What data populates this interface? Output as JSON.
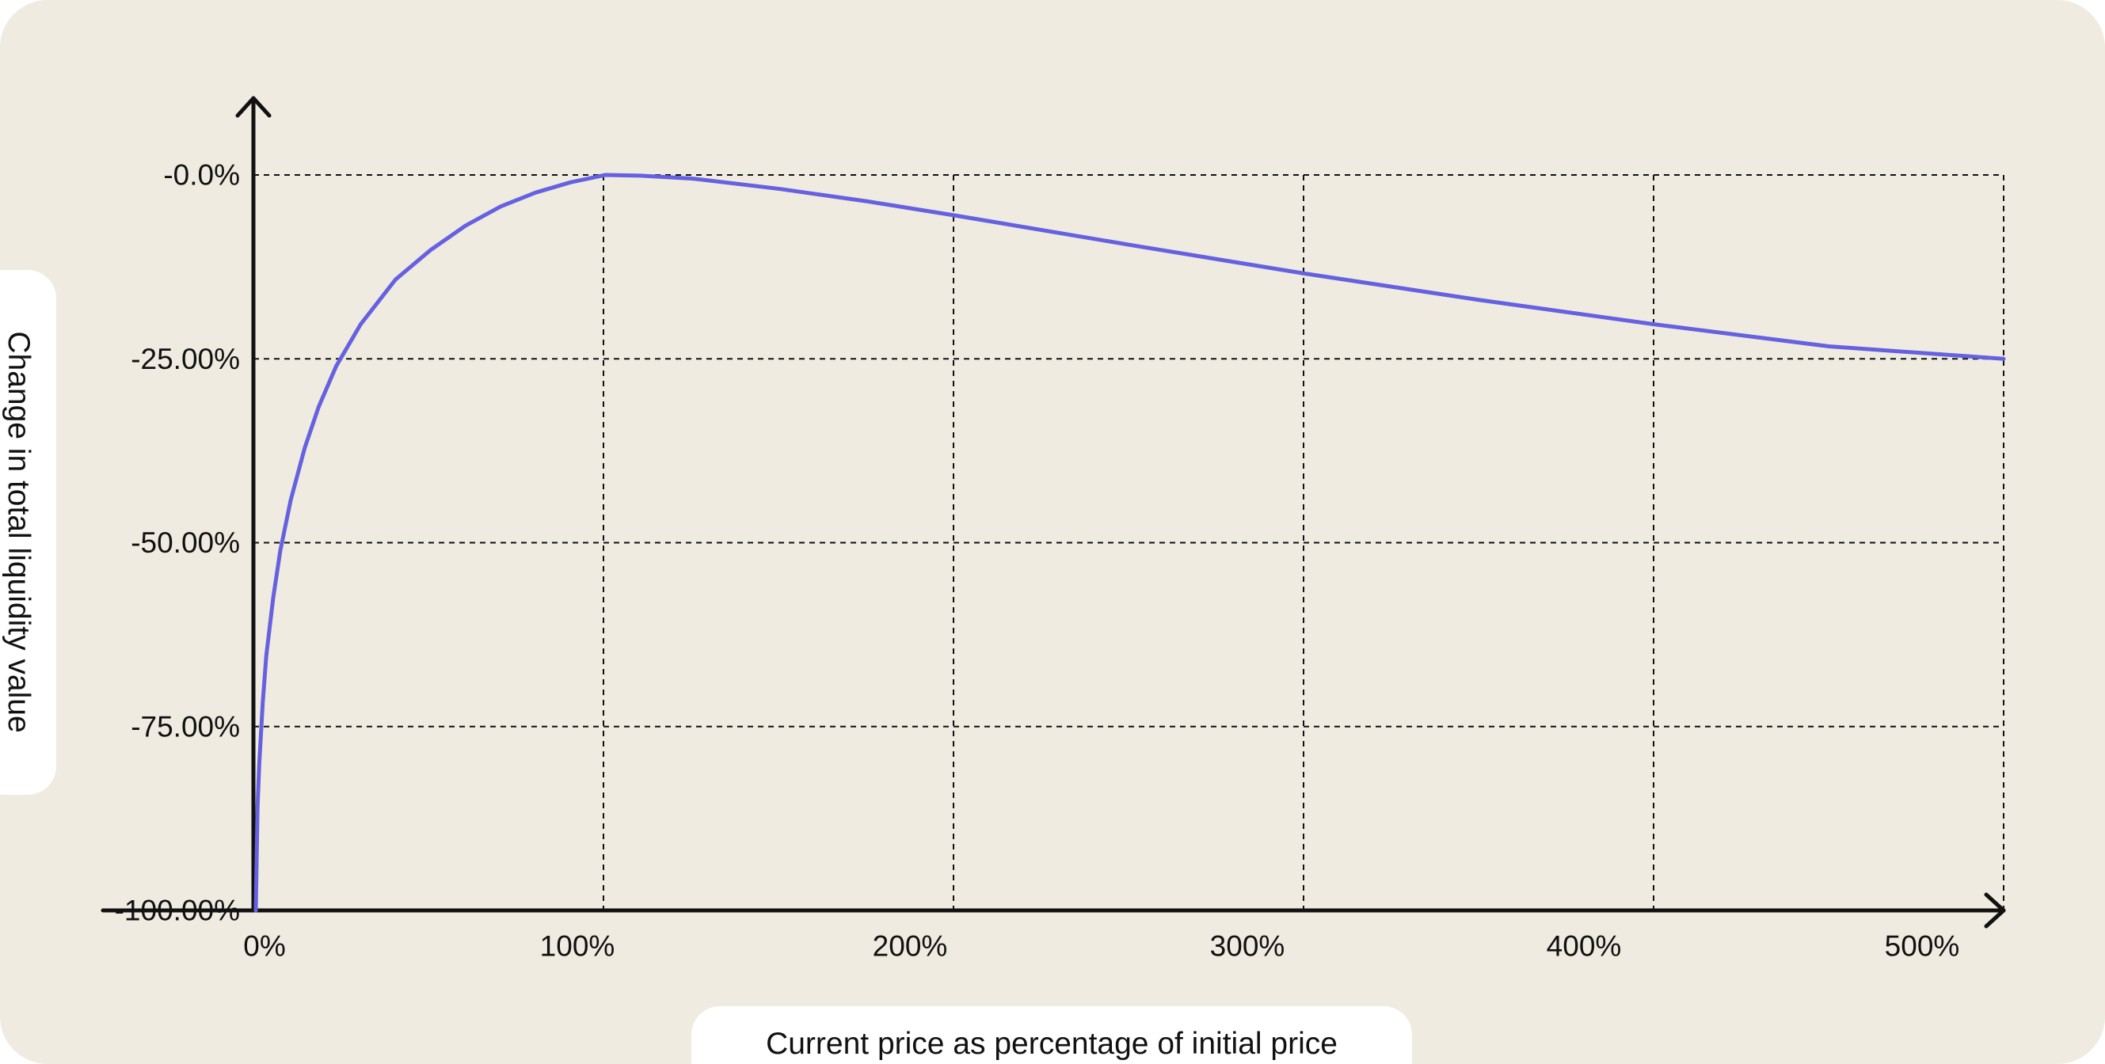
{
  "colors": {
    "background": "#efebe0",
    "curve": "#6561e0",
    "axis": "#111111",
    "grid": "#111111",
    "label_pill": "#ffffff"
  },
  "chart_data": {
    "type": "line",
    "title": "",
    "xlabel": "Current price as percentage of initial price",
    "ylabel": "Change in total liquidity value",
    "xlim": [
      0,
      520
    ],
    "ylim": [
      -100,
      0
    ],
    "x_ticks": [
      {
        "value": 0,
        "label": "0%"
      },
      {
        "value": 100,
        "label": "100%"
      },
      {
        "value": 200,
        "label": "200%"
      },
      {
        "value": 300,
        "label": "300%"
      },
      {
        "value": 400,
        "label": "400%"
      },
      {
        "value": 500,
        "label": "500%"
      }
    ],
    "y_ticks": [
      {
        "value": 0,
        "label": "-0.0%"
      },
      {
        "value": -25,
        "label": "-25.00%"
      },
      {
        "value": -50,
        "label": "-50.00%"
      },
      {
        "value": -75,
        "label": "-75.00%"
      },
      {
        "value": -100,
        "label": "-100.00%"
      }
    ],
    "grid": true,
    "series": [
      {
        "x": [
          0,
          0.5,
          1,
          2,
          3,
          5,
          7,
          10,
          14,
          18,
          23,
          30,
          40,
          50,
          60,
          70,
          80,
          90,
          100,
          110,
          125,
          150,
          175,
          200,
          250,
          300,
          350,
          400,
          450,
          500
        ],
        "y": [
          -100,
          -85.9,
          -80.0,
          -71.7,
          -65.4,
          -57.4,
          -51.1,
          -44.2,
          -37.1,
          -31.5,
          -26.0,
          -20.3,
          -14.2,
          -10.2,
          -6.9,
          -4.3,
          -2.4,
          -1.0,
          0,
          -0.1,
          -0.5,
          -1.9,
          -3.6,
          -5.5,
          -9.5,
          -13.4,
          -17.0,
          -20.3,
          -23.3,
          -25.0
        ]
      }
    ]
  }
}
